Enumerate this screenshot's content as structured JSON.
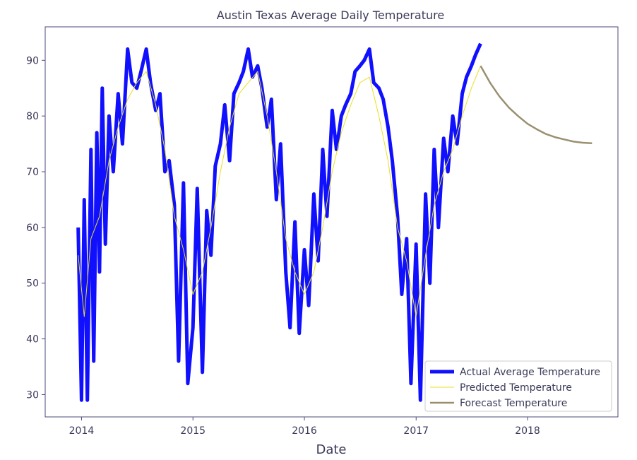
{
  "chart_data": {
    "type": "line",
    "title": "Austin Texas Average Daily Temperature",
    "xlabel": "Date",
    "ylabel": "",
    "x_range": [
      "2013-09-04",
      "2018-10-24"
    ],
    "ylim": [
      26,
      96
    ],
    "x_ticks": [
      "2014",
      "2015",
      "2016",
      "2017",
      "2018"
    ],
    "x_tick_dates": [
      "2014-01-01",
      "2015-01-01",
      "2016-01-01",
      "2017-01-01",
      "2018-01-01"
    ],
    "y_ticks": [
      30,
      40,
      50,
      60,
      70,
      80,
      90
    ],
    "grid": false,
    "legend_position": "lower-right",
    "series": [
      {
        "name": "Actual Average Temperature",
        "color": "#1010ff",
        "style": "thick",
        "x": [
          "2013-12-21",
          "2014-01-01",
          "2014-01-10",
          "2014-01-20",
          "2014-02-01",
          "2014-02-10",
          "2014-02-20",
          "2014-03-01",
          "2014-03-10",
          "2014-03-20",
          "2014-04-01",
          "2014-04-15",
          "2014-05-01",
          "2014-05-15",
          "2014-06-01",
          "2014-06-15",
          "2014-07-01",
          "2014-07-15",
          "2014-08-01",
          "2014-08-15",
          "2014-09-01",
          "2014-09-15",
          "2014-10-01",
          "2014-10-15",
          "2014-11-01",
          "2014-11-15",
          "2014-12-01",
          "2014-12-15",
          "2015-01-01",
          "2015-01-15",
          "2015-02-01",
          "2015-02-15",
          "2015-03-01",
          "2015-03-15",
          "2015-04-01",
          "2015-04-15",
          "2015-05-01",
          "2015-05-15",
          "2015-06-01",
          "2015-06-15",
          "2015-07-01",
          "2015-07-15",
          "2015-08-01",
          "2015-08-15",
          "2015-09-01",
          "2015-09-15",
          "2015-10-01",
          "2015-10-15",
          "2015-11-01",
          "2015-11-15",
          "2015-12-01",
          "2015-12-15",
          "2016-01-01",
          "2016-01-15",
          "2016-02-01",
          "2016-02-15",
          "2016-03-01",
          "2016-03-15",
          "2016-04-01",
          "2016-04-15",
          "2016-05-01",
          "2016-05-15",
          "2016-06-01",
          "2016-06-15",
          "2016-07-01",
          "2016-07-15",
          "2016-08-01",
          "2016-08-15",
          "2016-09-01",
          "2016-09-15",
          "2016-10-01",
          "2016-10-15",
          "2016-11-01",
          "2016-11-15",
          "2016-12-01",
          "2016-12-15",
          "2017-01-01",
          "2017-01-15",
          "2017-02-01",
          "2017-02-15",
          "2017-03-01",
          "2017-03-15",
          "2017-04-01",
          "2017-04-15",
          "2017-05-01",
          "2017-05-15",
          "2017-06-01",
          "2017-06-15",
          "2017-07-01",
          "2017-07-15",
          "2017-07-31"
        ],
        "values": [
          60,
          29,
          65,
          29,
          74,
          36,
          77,
          52,
          85,
          57,
          80,
          70,
          84,
          75,
          92,
          86,
          85,
          88,
          92,
          86,
          81,
          84,
          70,
          72,
          64,
          36,
          68,
          32,
          42,
          67,
          34,
          63,
          55,
          71,
          75,
          82,
          72,
          84,
          86,
          88,
          92,
          87,
          89,
          85,
          78,
          83,
          65,
          75,
          52,
          42,
          61,
          41,
          56,
          46,
          66,
          54,
          74,
          62,
          81,
          74,
          80,
          82,
          84,
          88,
          89,
          90,
          92,
          86,
          85,
          83,
          78,
          72,
          62,
          48,
          58,
          32,
          57,
          29,
          66,
          50,
          74,
          60,
          76,
          70,
          80,
          75,
          84,
          87,
          89,
          91,
          93
        ]
      },
      {
        "name": "Predicted Temperature",
        "color": "#e8e020",
        "style": "thin",
        "x": [
          "2013-12-21",
          "2014-01-10",
          "2014-02-01",
          "2014-03-01",
          "2014-04-01",
          "2014-05-01",
          "2014-06-01",
          "2014-07-01",
          "2014-08-01",
          "2014-09-01",
          "2014-10-01",
          "2014-11-01",
          "2014-12-01",
          "2015-01-01",
          "2015-02-01",
          "2015-03-01",
          "2015-04-01",
          "2015-05-01",
          "2015-06-01",
          "2015-07-01",
          "2015-08-01",
          "2015-09-01",
          "2015-10-01",
          "2015-11-01",
          "2015-12-01",
          "2016-01-01",
          "2016-02-01",
          "2016-03-01",
          "2016-04-01",
          "2016-05-01",
          "2016-06-01",
          "2016-07-01",
          "2016-08-01",
          "2016-09-01",
          "2016-10-01",
          "2016-11-01",
          "2016-12-01",
          "2017-01-01",
          "2017-02-01",
          "2017-03-01",
          "2017-04-01",
          "2017-05-01",
          "2017-06-01",
          "2017-07-01",
          "2017-07-31"
        ],
        "values": [
          55,
          44,
          58,
          62,
          72,
          78,
          83,
          86,
          88,
          82,
          74,
          62,
          56,
          48,
          52,
          60,
          70,
          78,
          84,
          86,
          88,
          80,
          70,
          58,
          52,
          48,
          52,
          60,
          70,
          77,
          82,
          86,
          87,
          80,
          72,
          60,
          54,
          44,
          55,
          64,
          70,
          74,
          80,
          85,
          89
        ]
      },
      {
        "name": "Forecast Temperature",
        "color": "#9a9070",
        "style": "medium",
        "x": [
          "2017-07-31",
          "2017-09-01",
          "2017-10-01",
          "2017-11-01",
          "2017-12-01",
          "2018-01-01",
          "2018-02-01",
          "2018-03-01",
          "2018-04-01",
          "2018-05-01",
          "2018-06-01",
          "2018-07-01",
          "2018-07-31"
        ],
        "values": [
          89,
          85.9,
          83.5,
          81.5,
          80,
          78.6,
          77.6,
          76.8,
          76.2,
          75.8,
          75.4,
          75.2,
          75.1
        ]
      }
    ]
  }
}
